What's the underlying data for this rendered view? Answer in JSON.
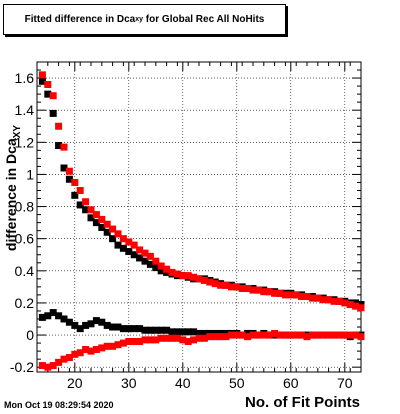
{
  "chart_data": {
    "type": "scatter",
    "title": {
      "pre": "Fitted difference in Dca",
      "sub": "xy",
      "post": " for Global Rec All NoHits"
    },
    "xlabel": "No. of Fit Points",
    "ylabel": {
      "pre": "difference in Dca",
      "sub": "XY"
    },
    "xlim": [
      13,
      73
    ],
    "ylim": [
      -0.23,
      1.7
    ],
    "xticks": [
      20,
      30,
      40,
      50,
      60,
      70
    ],
    "yticks": [
      -0.2,
      0,
      0.2,
      0.4,
      0.6,
      0.8,
      1,
      1.2,
      1.4,
      1.6
    ],
    "ytick_labels": [
      "-0.2",
      "0",
      "0.2",
      "0.4",
      "0.6",
      "0.8",
      "1",
      "1.2",
      "1.4",
      "1.6"
    ],
    "grid": true,
    "series": [
      {
        "marker": "square",
        "color": "#000000",
        "x": [
          14,
          15,
          16,
          17,
          18,
          19,
          20,
          21,
          22,
          23,
          24,
          25,
          26,
          27,
          28,
          29,
          30,
          31,
          32,
          33,
          34,
          35,
          36,
          37,
          38,
          39,
          40,
          41,
          42,
          43,
          44,
          45,
          46,
          47,
          48,
          49,
          50,
          51,
          52,
          53,
          54,
          55,
          56,
          57,
          58,
          59,
          60,
          61,
          62,
          63,
          64,
          65,
          66,
          67,
          68,
          69,
          70,
          71,
          72,
          73
        ],
        "y": [
          1.58,
          1.5,
          1.38,
          1.18,
          1.04,
          0.97,
          0.87,
          0.81,
          0.78,
          0.73,
          0.7,
          0.67,
          0.64,
          0.6,
          0.56,
          0.54,
          0.52,
          0.5,
          0.48,
          0.46,
          0.44,
          0.42,
          0.4,
          0.39,
          0.38,
          0.37,
          0.37,
          0.36,
          0.35,
          0.35,
          0.35,
          0.34,
          0.33,
          0.32,
          0.31,
          0.31,
          0.3,
          0.3,
          0.29,
          0.29,
          0.28,
          0.28,
          0.27,
          0.27,
          0.26,
          0.26,
          0.26,
          0.25,
          0.25,
          0.24,
          0.24,
          0.23,
          0.23,
          0.22,
          0.22,
          0.21,
          0.21,
          0.2,
          0.2,
          0.19
        ]
      },
      {
        "marker": "square",
        "color": "#ff0000",
        "x": [
          14,
          15,
          16,
          17,
          18,
          19,
          20,
          21,
          22,
          23,
          24,
          25,
          26,
          27,
          28,
          29,
          30,
          31,
          32,
          33,
          34,
          35,
          36,
          37,
          38,
          39,
          40,
          41,
          42,
          43,
          44,
          45,
          46,
          47,
          48,
          49,
          50,
          51,
          52,
          53,
          54,
          55,
          56,
          57,
          58,
          59,
          60,
          61,
          62,
          63,
          64,
          65,
          66,
          67,
          68,
          69,
          70,
          71,
          72,
          73
        ],
        "y": [
          1.62,
          1.56,
          1.49,
          1.3,
          1.17,
          1.02,
          0.95,
          0.9,
          0.83,
          0.78,
          0.75,
          0.72,
          0.69,
          0.66,
          0.63,
          0.6,
          0.58,
          0.56,
          0.53,
          0.51,
          0.49,
          0.46,
          0.43,
          0.41,
          0.39,
          0.38,
          0.37,
          0.37,
          0.36,
          0.35,
          0.34,
          0.33,
          0.32,
          0.31,
          0.31,
          0.3,
          0.3,
          0.29,
          0.29,
          0.28,
          0.28,
          0.27,
          0.27,
          0.26,
          0.26,
          0.25,
          0.25,
          0.25,
          0.24,
          0.24,
          0.23,
          0.23,
          0.22,
          0.22,
          0.21,
          0.21,
          0.2,
          0.19,
          0.18,
          0.17
        ]
      },
      {
        "marker": "square",
        "color": "#000000",
        "x": [
          14,
          15,
          16,
          17,
          18,
          19,
          20,
          21,
          22,
          23,
          24,
          25,
          26,
          27,
          28,
          29,
          30,
          31,
          32,
          33,
          34,
          35,
          36,
          37,
          38,
          39,
          40,
          41,
          42,
          43,
          44,
          45,
          46,
          47,
          48,
          49,
          50,
          51,
          52,
          53,
          54,
          55,
          56,
          57,
          58,
          59,
          60,
          61,
          62,
          63,
          64,
          65,
          66,
          67,
          68,
          69,
          70,
          71,
          72,
          73
        ],
        "y": [
          0.11,
          0.12,
          0.14,
          0.12,
          0.1,
          0.08,
          0.06,
          0.04,
          0.06,
          0.07,
          0.09,
          0.08,
          0.06,
          0.05,
          0.05,
          0.04,
          0.04,
          0.04,
          0.04,
          0.03,
          0.03,
          0.03,
          0.03,
          0.03,
          0.02,
          0.02,
          0.02,
          0.02,
          0.02,
          0.01,
          0.01,
          0.01,
          0.01,
          0.01,
          0.01,
          0.01,
          0.01,
          0.0,
          0.01,
          0.01,
          0.0,
          0.01,
          0.0,
          0.0,
          0.0,
          0.0,
          0.0,
          0.0,
          0.0,
          0.0,
          0.0,
          0.0,
          0.0,
          0.0,
          0.0,
          0.0,
          0.0,
          -0.01,
          0.0,
          0.0
        ]
      },
      {
        "marker": "square",
        "color": "#ff0000",
        "x": [
          14,
          15,
          16,
          17,
          18,
          19,
          20,
          21,
          22,
          23,
          24,
          25,
          26,
          27,
          28,
          29,
          30,
          31,
          32,
          33,
          34,
          35,
          36,
          37,
          38,
          39,
          40,
          41,
          42,
          43,
          44,
          45,
          46,
          47,
          48,
          49,
          50,
          51,
          52,
          53,
          54,
          55,
          56,
          57,
          58,
          59,
          60,
          61,
          62,
          63,
          64,
          65,
          66,
          67,
          68,
          69,
          70,
          71,
          72,
          73
        ],
        "y": [
          -0.19,
          -0.2,
          -0.19,
          -0.17,
          -0.15,
          -0.14,
          -0.12,
          -0.11,
          -0.09,
          -0.1,
          -0.09,
          -0.08,
          -0.07,
          -0.07,
          -0.06,
          -0.05,
          -0.04,
          -0.04,
          -0.04,
          -0.03,
          -0.03,
          -0.03,
          -0.02,
          -0.02,
          -0.02,
          -0.02,
          -0.03,
          -0.04,
          -0.03,
          -0.02,
          -0.02,
          -0.01,
          -0.01,
          -0.01,
          -0.01,
          0.0,
          0.0,
          0.0,
          -0.01,
          0.0,
          0.0,
          0.0,
          0.0,
          0.01,
          0.0,
          0.0,
          0.0,
          0.0,
          0.0,
          -0.01,
          0.0,
          0.0,
          0.0,
          0.0,
          0.0,
          0.0,
          0.0,
          0.0,
          0.0,
          -0.01
        ]
      }
    ],
    "footer": "Mon Oct 19 08:29:54 2020"
  }
}
